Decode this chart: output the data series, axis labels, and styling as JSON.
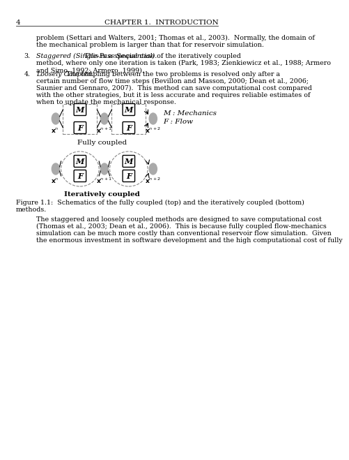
{
  "page_number": "4",
  "chapter_header": "CHAPTER 1.  INTRODUCTION",
  "bg_color": "#ffffff",
  "text_color": "#000000",
  "gray_color": "#aaaaaa",
  "box_color": "#ffffff",
  "box_edge_color": "#000000",
  "dashed_box_color": "#999999",
  "paragraph1": "problem (Settari and Walters, 2001; Thomas et al., 2003).  Normally, the domain of\nthe mechanical problem is larger than that for reservoir simulation.",
  "item3_label": "3.",
  "item3_italic": "Staggered (Single-Pass Sequential).",
  "item3_text": "  This is a special case of the iteratively coupled\nmethod, where only one iteration is taken (Park, 1983; Zienkiewicz et al., 1988; Armero\nand Simo, 1992; Armero, 1999).",
  "item4_label": "4.",
  "item4_italic": "Loosely Coupled.",
  "item4_text": "  The coupling between the two problems is resolved only after a\ncertain number of flow time steps (Bevillon and Masson, 2000; Dean et al., 2006;\nSaunier and Gennaro, 2007).  This method can save computational cost compared\nwith the other strategies, but it is less accurate and requires reliable estimates of\nwhen to update the mechanical response.",
  "legend_M": "M : Mechanics",
  "legend_F": "F : Flow",
  "label_fully": "Fully coupled",
  "label_iteratively": "Iteratively coupled",
  "figure_caption": "Figure 1.1:  Schematics of the fully coupled (top) and the iteratively coupled (bottom)\nmethods.",
  "paragraph2": "   The staggered and loosely coupled methods are designed to save computational cost\n(Thomas et al., 2003; Dean et al., 2006).  This is because fully coupled flow-mechanics\nsimulation can be much more costly than conventional reservoir flow simulation.  Given\nthe enormous investment in software development and the high computational cost of fully"
}
